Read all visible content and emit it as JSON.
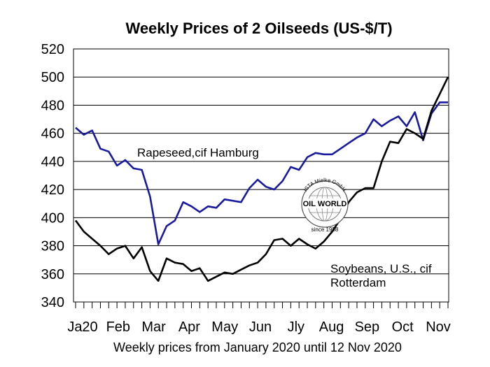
{
  "chart_data": {
    "type": "line",
    "title": "Weekly Prices of 2 Oilseeds (US-$/T)",
    "xlabel": "Weekly prices from January 2020 until 12 Nov 2020",
    "ylabel": "",
    "ylim": [
      340,
      520
    ],
    "yticks": [
      340,
      360,
      380,
      400,
      420,
      440,
      460,
      480,
      500,
      520
    ],
    "grid": "horizontal",
    "x_month_labels": [
      "Ja20",
      "Feb",
      "Mar",
      "Apr",
      "May",
      "Jun",
      "Jly",
      "Aug",
      "Sep",
      "Oct",
      "Nov"
    ],
    "x_weeks": [
      1,
      2,
      3,
      4,
      5,
      6,
      7,
      8,
      9,
      10,
      11,
      12,
      13,
      14,
      15,
      16,
      17,
      18,
      19,
      20,
      21,
      22,
      23,
      24,
      25,
      26,
      27,
      28,
      29,
      30,
      31,
      32,
      33,
      34,
      35,
      36,
      37,
      38,
      39,
      40,
      41,
      42,
      43,
      44,
      45,
      46
    ],
    "series": [
      {
        "name": "Rapeseed,cif Hamburg",
        "color": "#1a1aa0",
        "values": [
          464,
          459,
          462,
          449,
          447,
          437,
          441,
          435,
          434,
          415,
          381,
          394,
          398,
          411,
          408,
          404,
          408,
          407,
          413,
          412,
          411,
          421,
          427,
          422,
          420,
          426,
          436,
          434,
          443,
          446,
          445,
          445,
          449,
          453,
          457,
          460,
          470,
          465,
          469,
          472,
          465,
          475,
          455,
          474,
          482,
          482
        ]
      },
      {
        "name": "Soybeans, U.S., cif Rotterdam",
        "color": "#000000",
        "values": [
          398,
          390,
          385,
          380,
          374,
          378,
          380,
          371,
          379,
          362,
          355,
          371,
          368,
          367,
          362,
          364,
          355,
          358,
          361,
          360,
          363,
          366,
          368,
          374,
          384,
          385,
          380,
          385,
          381,
          378,
          383,
          390,
          399,
          411,
          418,
          421,
          421,
          440,
          454,
          453,
          463,
          460,
          456,
          476,
          488,
          500
        ]
      }
    ],
    "annotations": [
      "Rapeseed,cif Hamburg",
      "Soybeans, U.S., cif",
      "Rotterdam"
    ]
  },
  "logo": {
    "top_text": "ISTA Mielke GmbH",
    "center_text": "OIL WORLD",
    "bottom_text": "since 1958"
  }
}
